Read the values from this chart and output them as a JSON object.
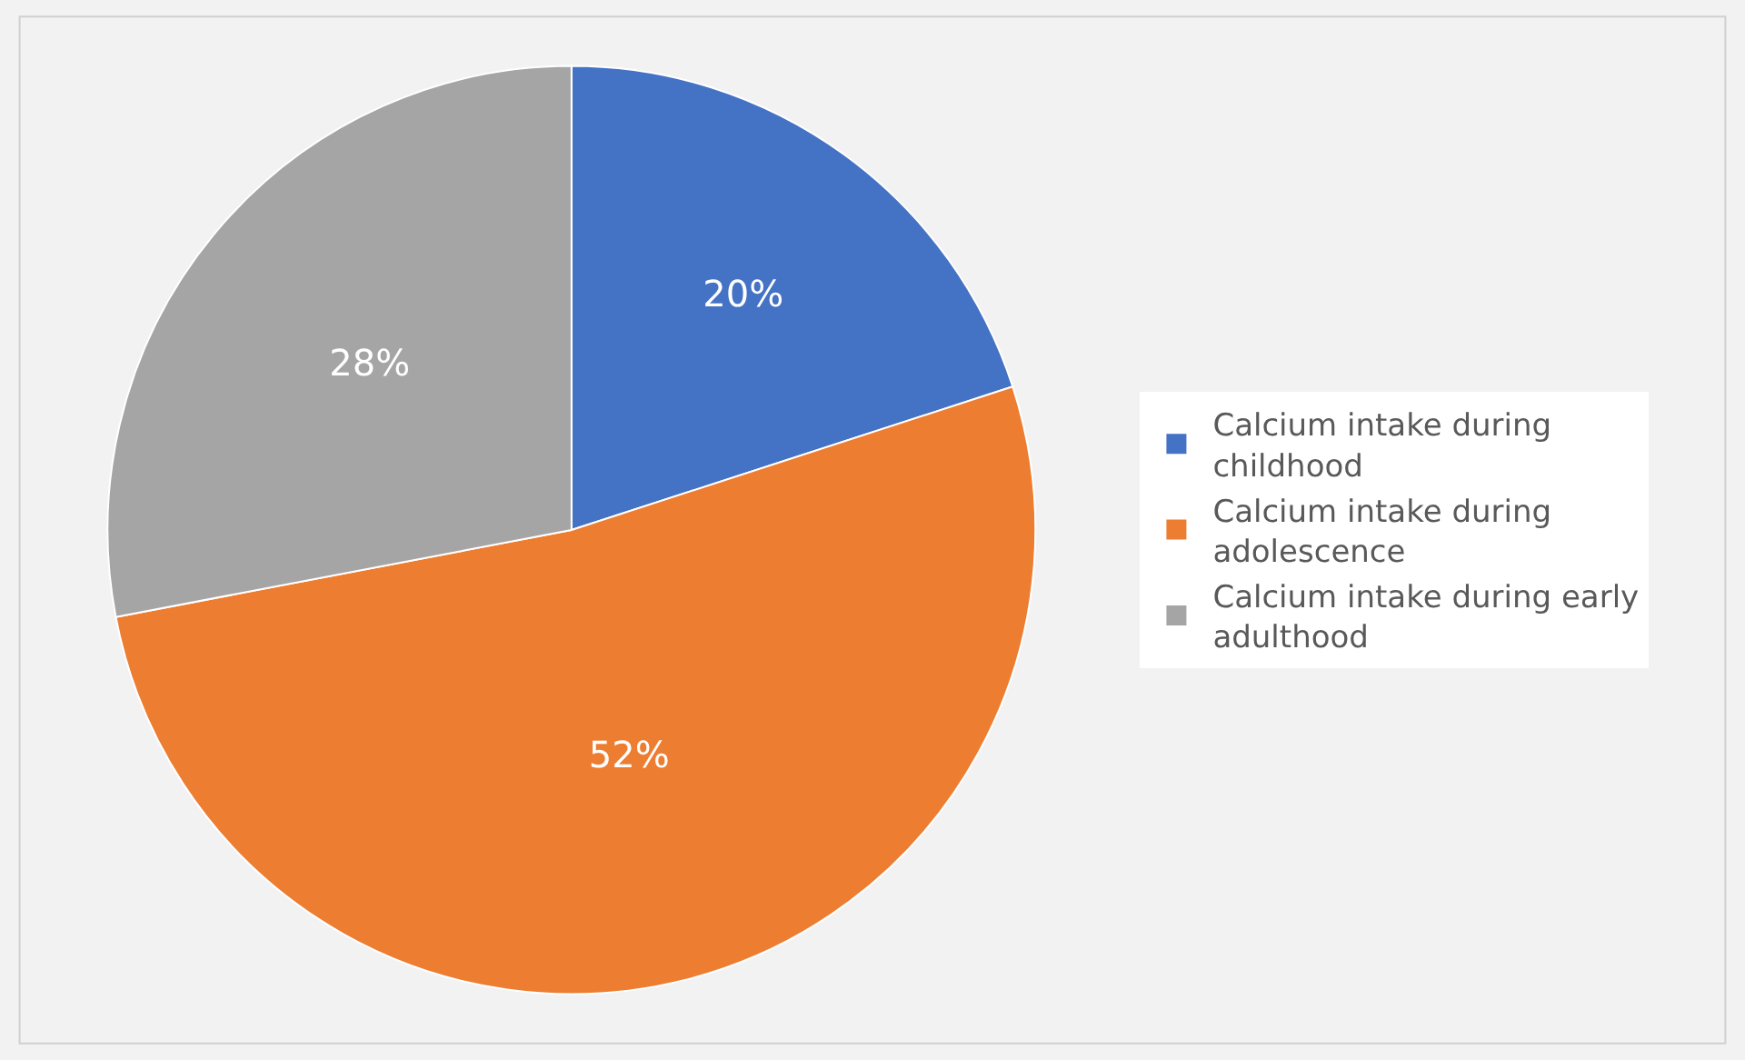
{
  "chart_data": {
    "type": "pie",
    "categories": [
      "Calcium intake during childhood",
      "Calcium intake during adolescence",
      "Calcium intake during early adulthood"
    ],
    "values": [
      20,
      52,
      28
    ],
    "value_labels": [
      "20%",
      "52%",
      "28%"
    ],
    "colors": [
      "#4472c4",
      "#ed7d31",
      "#a5a5a5"
    ],
    "legend": "right"
  }
}
